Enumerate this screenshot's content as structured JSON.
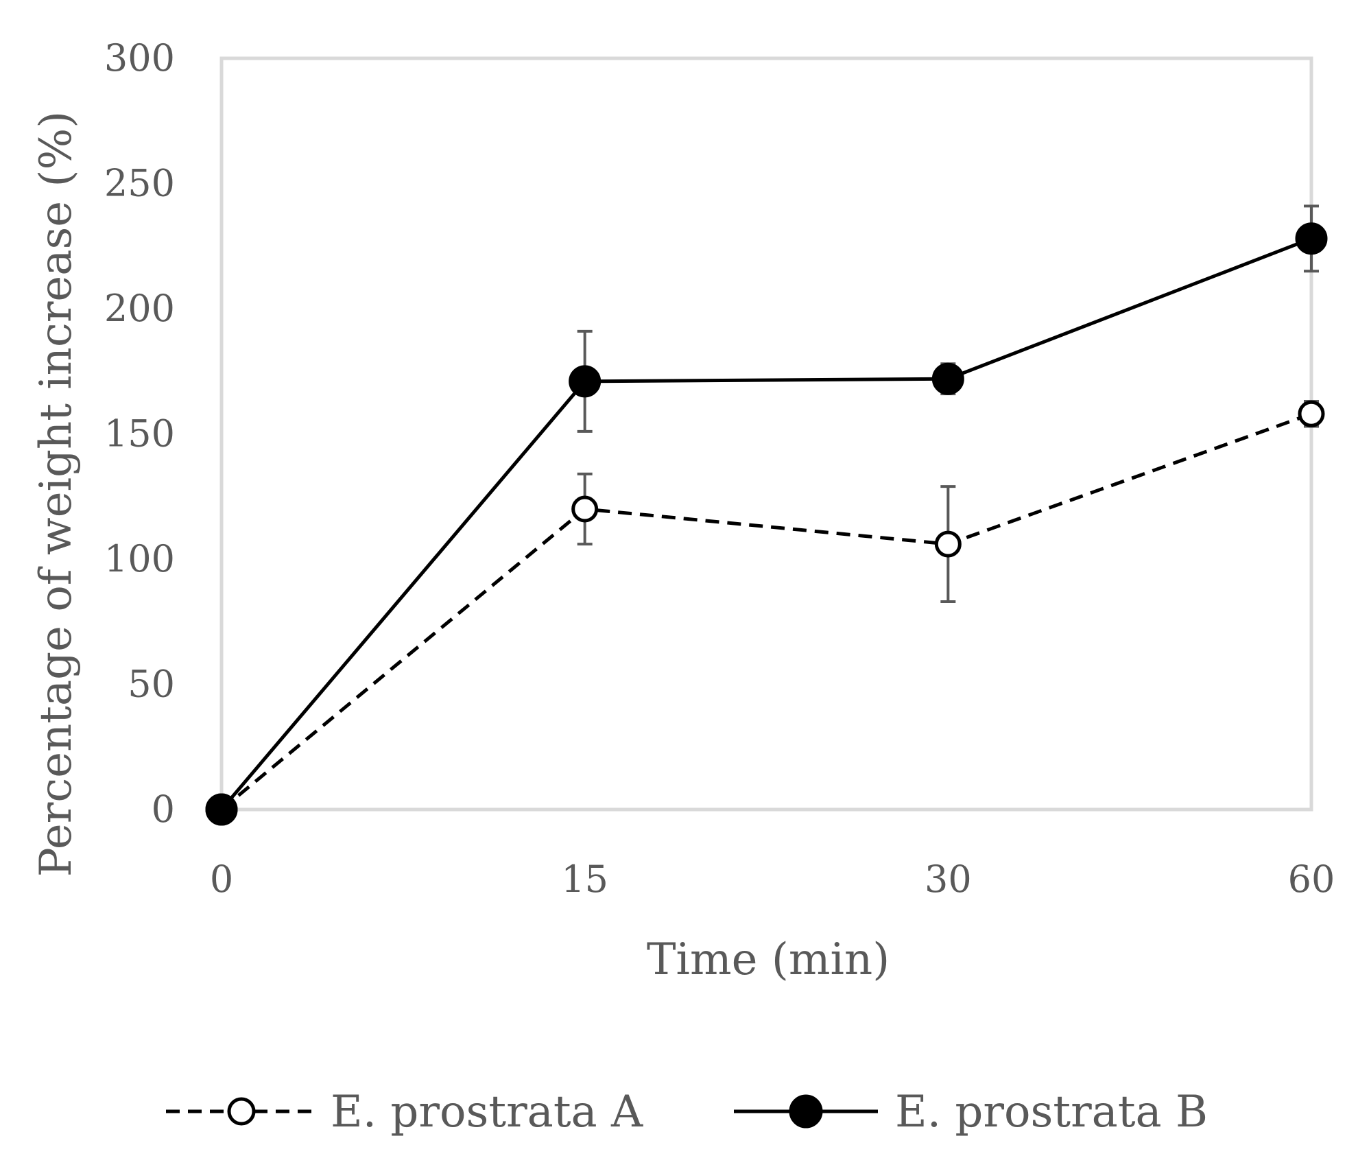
{
  "chart_data": {
    "type": "line",
    "categories": [
      "0",
      "15",
      "30",
      "60"
    ],
    "xlabel": "Time (min)",
    "ylabel": "Percentage of weight increase (%)",
    "ylim": [
      0,
      300
    ],
    "yticks": [
      "0",
      "50",
      "100",
      "150",
      "200",
      "250",
      "300"
    ],
    "grid": false,
    "legend": "bottom",
    "series": [
      {
        "name": "E. prostrata A",
        "values": [
          0,
          120,
          106,
          158
        ],
        "errors": [
          0,
          14,
          23,
          5
        ],
        "style": "dashed",
        "marker": "open-circle",
        "color": "#000000"
      },
      {
        "name": "E. prostrata B",
        "values": [
          0,
          171,
          172,
          228
        ],
        "errors": [
          0,
          20,
          6,
          13
        ],
        "style": "solid",
        "marker": "filled-circle",
        "color": "#000000"
      }
    ],
    "colors": {
      "plot_border": "#d9d9d9",
      "text": "#595959",
      "error_bar": "#595959"
    }
  }
}
